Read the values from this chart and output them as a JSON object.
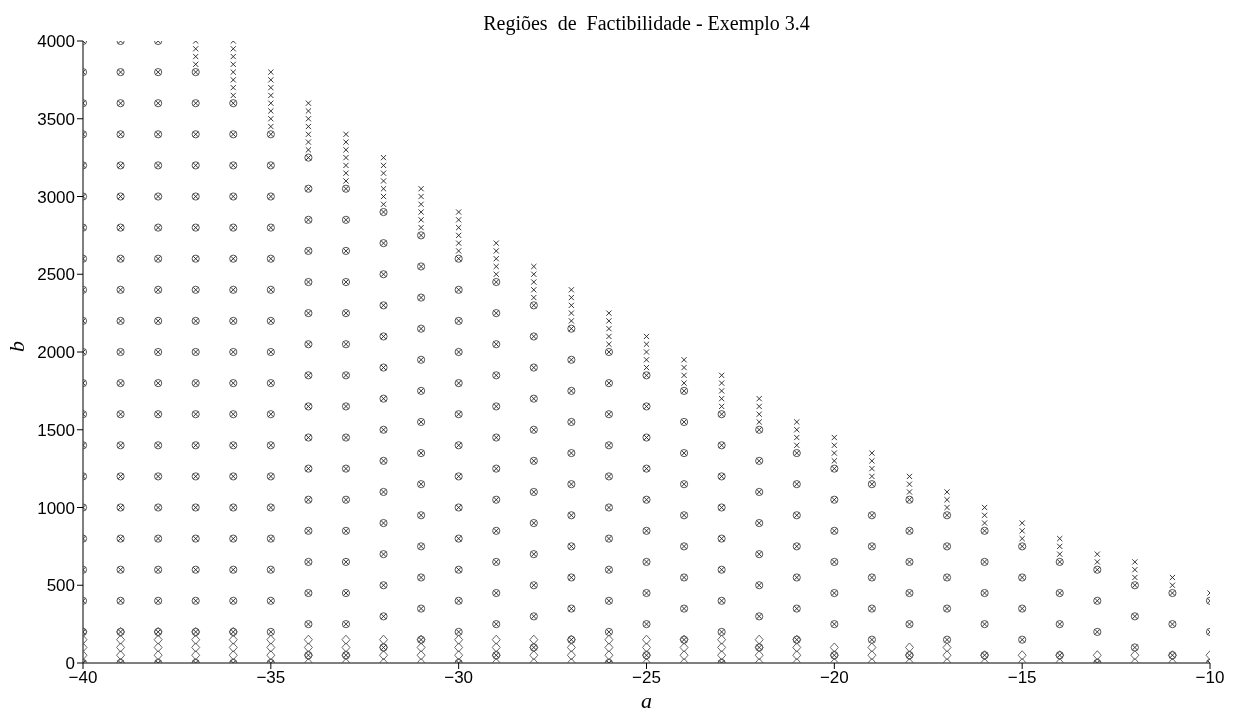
{
  "chart_data": {
    "type": "scatter",
    "title": "Regiões  de  Factibilidade - Exemplo 3.4",
    "xlabel": "a",
    "ylabel": "b",
    "xlim": [
      -40,
      -10
    ],
    "xticks": [
      -40,
      -35,
      -30,
      -25,
      -20,
      -15,
      -10
    ],
    "ylim": [
      0,
      4000
    ],
    "yticks": [
      0,
      500,
      1000,
      1500,
      2000,
      2500,
      3000,
      3500,
      4000
    ],
    "grid": false,
    "legend": false,
    "series": [
      {
        "type": "scatter",
        "marker": "cross",
        "color": "#222222",
        "x": [
          -40,
          -40,
          -40,
          -40,
          -40,
          -40,
          -40,
          -40,
          -40,
          -40,
          -40,
          -40,
          -40,
          -40,
          -40,
          -40,
          -40,
          -40,
          -40,
          -40,
          -40,
          -39,
          -39,
          -39,
          -39,
          -39,
          -39,
          -39,
          -39,
          -39,
          -39,
          -39,
          -39,
          -39,
          -39,
          -39,
          -39,
          -39,
          -39,
          -39,
          -39,
          -39,
          -38,
          -38,
          -38,
          -38,
          -38,
          -38,
          -38,
          -38,
          -38,
          -38,
          -38,
          -38,
          -38,
          -38,
          -38,
          -38,
          -38,
          -38,
          -38,
          -38,
          -38,
          -37,
          -37,
          -37,
          -37,
          -37,
          -37,
          -37,
          -37,
          -37,
          -37,
          -37,
          -37,
          -37,
          -37,
          -37,
          -37,
          -37,
          -37,
          -37,
          -37,
          -37,
          -37,
          -37,
          -37,
          -36,
          -36,
          -36,
          -36,
          -36,
          -36,
          -36,
          -36,
          -36,
          -36,
          -36,
          -36,
          -36,
          -36,
          -36,
          -36,
          -36,
          -36,
          -36,
          -36,
          -36,
          -36,
          -36,
          -36,
          -36,
          -36,
          -36,
          -35,
          -35,
          -35,
          -35,
          -35,
          -35,
          -35,
          -35,
          -35,
          -35,
          -35,
          -35,
          -35,
          -35,
          -35,
          -35,
          -35,
          -35,
          -35,
          -35,
          -35,
          -35,
          -35,
          -35,
          -35,
          -35,
          -34,
          -34,
          -34,
          -34,
          -34,
          -34,
          -34,
          -34,
          -34,
          -34,
          -34,
          -34,
          -34,
          -34,
          -34,
          -34,
          -34,
          -34,
          -34,
          -34,
          -34,
          -34,
          -34,
          -34,
          -33,
          -33,
          -33,
          -33,
          -33,
          -33,
          -33,
          -33,
          -33,
          -33,
          -33,
          -33,
          -33,
          -33,
          -33,
          -33,
          -33,
          -33,
          -33,
          -33,
          -33,
          -33,
          -33,
          -32,
          -32,
          -32,
          -32,
          -32,
          -32,
          -32,
          -32,
          -32,
          -32,
          -32,
          -32,
          -32,
          -32,
          -32,
          -32,
          -32,
          -32,
          -32,
          -32,
          -32,
          -32,
          -31,
          -31,
          -31,
          -31,
          -31,
          -31,
          -31,
          -31,
          -31,
          -31,
          -31,
          -31,
          -31,
          -31,
          -31,
          -31,
          -31,
          -31,
          -31,
          -31,
          -30,
          -30,
          -30,
          -30,
          -30,
          -30,
          -30,
          -30,
          -30,
          -30,
          -30,
          -30,
          -30,
          -30,
          -30,
          -30,
          -30,
          -30,
          -30,
          -30,
          -29,
          -29,
          -29,
          -29,
          -29,
          -29,
          -29,
          -29,
          -29,
          -29,
          -29,
          -29,
          -29,
          -29,
          -29,
          -29,
          -29,
          -29,
          -28,
          -28,
          -28,
          -28,
          -28,
          -28,
          -28,
          -28,
          -28,
          -28,
          -28,
          -28,
          -28,
          -28,
          -28,
          -28,
          -28,
          -27,
          -27,
          -27,
          -27,
          -27,
          -27,
          -27,
          -27,
          -27,
          -27,
          -27,
          -27,
          -27,
          -27,
          -27,
          -27,
          -26,
          -26,
          -26,
          -26,
          -26,
          -26,
          -26,
          -26,
          -26,
          -26,
          -26,
          -26,
          -26,
          -26,
          -26,
          -26,
          -25,
          -25,
          -25,
          -25,
          -25,
          -25,
          -25,
          -25,
          -25,
          -25,
          -25,
          -25,
          -25,
          -25,
          -25,
          -24,
          -24,
          -24,
          -24,
          -24,
          -24,
          -24,
          -24,
          -24,
          -24,
          -24,
          -24,
          -24,
          -23,
          -23,
          -23,
          -23,
          -23,
          -23,
          -23,
          -23,
          -23,
          -23,
          -23,
          -23,
          -23,
          -23,
          -22,
          -22,
          -22,
          -22,
          -22,
          -22,
          -22,
          -22,
          -22,
          -22,
          -22,
          -22,
          -21,
          -21,
          -21,
          -21,
          -21,
          -21,
          -21,
          -21,
          -21,
          -21,
          -21,
          -20,
          -20,
          -20,
          -20,
          -20,
          -20,
          -20,
          -20,
          -20,
          -20,
          -20,
          -19,
          -19,
          -19,
          -19,
          -19,
          -19,
          -19,
          -19,
          -19,
          -19,
          -18,
          -18,
          -18,
          -18,
          -18,
          -18,
          -18,
          -18,
          -18,
          -17,
          -17,
          -17,
          -17,
          -17,
          -17,
          -17,
          -17,
          -16,
          -16,
          -16,
          -16,
          -16,
          -16,
          -16,
          -16,
          -15,
          -15,
          -15,
          -15,
          -15,
          -15,
          -15,
          -14,
          -14,
          -14,
          -14,
          -14,
          -14,
          -14,
          -13,
          -13,
          -13,
          -13,
          -13,
          -13,
          -12,
          -12,
          -12,
          -12,
          -12,
          -12,
          -11,
          -11,
          -11,
          -11,
          -11,
          -10,
          -10,
          -10,
          -10
        ],
        "values": [
          4000,
          3800,
          3600,
          3400,
          3200,
          3000,
          2800,
          2600,
          2400,
          2200,
          2000,
          1800,
          1600,
          1400,
          1200,
          1000,
          800,
          600,
          400,
          200,
          0,
          4000,
          3800,
          3600,
          3400,
          3200,
          3000,
          2800,
          2600,
          2400,
          2200,
          2000,
          1800,
          1600,
          1400,
          1200,
          1000,
          800,
          600,
          400,
          200,
          0,
          4000,
          3800,
          3600,
          3400,
          3200,
          3000,
          2800,
          2600,
          2400,
          2200,
          2000,
          1800,
          1600,
          1400,
          1200,
          1000,
          800,
          600,
          400,
          200,
          0,
          4000,
          3950,
          3900,
          3850,
          3800,
          3600,
          3400,
          3200,
          3000,
          2800,
          2600,
          2400,
          2200,
          2000,
          1800,
          1600,
          1400,
          1200,
          1000,
          800,
          600,
          400,
          200,
          0,
          4000,
          3950,
          3900,
          3850,
          3800,
          3750,
          3700,
          3650,
          3600,
          3400,
          3200,
          3000,
          2800,
          2600,
          2400,
          2200,
          2000,
          1800,
          1600,
          1400,
          1200,
          1000,
          800,
          600,
          400,
          200,
          0,
          3800,
          3750,
          3700,
          3650,
          3600,
          3550,
          3500,
          3450,
          3400,
          3200,
          3000,
          2800,
          2600,
          2400,
          2200,
          2000,
          1800,
          1600,
          1400,
          1200,
          1000,
          800,
          600,
          400,
          200,
          0,
          3600,
          3550,
          3500,
          3450,
          3400,
          3350,
          3300,
          3250,
          3050,
          2850,
          2650,
          2450,
          2250,
          2050,
          1850,
          1650,
          1450,
          1250,
          1050,
          850,
          650,
          450,
          250,
          50,
          3400,
          3350,
          3300,
          3250,
          3200,
          3150,
          3100,
          3050,
          2850,
          2650,
          2450,
          2250,
          2050,
          1850,
          1650,
          1450,
          1250,
          1050,
          850,
          650,
          450,
          250,
          50,
          3250,
          3200,
          3150,
          3100,
          3050,
          3000,
          2950,
          2900,
          2700,
          2500,
          2300,
          2100,
          1900,
          1700,
          1500,
          1300,
          1100,
          900,
          700,
          500,
          300,
          100,
          3050,
          3000,
          2950,
          2900,
          2850,
          2800,
          2750,
          2550,
          2350,
          2150,
          1950,
          1750,
          1550,
          1350,
          1150,
          950,
          750,
          550,
          350,
          150,
          2900,
          2850,
          2800,
          2750,
          2700,
          2650,
          2600,
          2400,
          2200,
          2000,
          1800,
          1600,
          1400,
          1200,
          1000,
          800,
          600,
          400,
          200,
          0,
          2700,
          2650,
          2600,
          2550,
          2500,
          2450,
          2250,
          2050,
          1850,
          1650,
          1450,
          1250,
          1050,
          850,
          650,
          450,
          250,
          50,
          2550,
          2500,
          2450,
          2400,
          2350,
          2300,
          2100,
          1900,
          1700,
          1500,
          1300,
          1100,
          900,
          700,
          500,
          300,
          100,
          2400,
          2350,
          2300,
          2250,
          2200,
          2150,
          1950,
          1750,
          1550,
          1350,
          1150,
          950,
          750,
          550,
          350,
          150,
          2250,
          2200,
          2150,
          2100,
          2050,
          2000,
          1800,
          1600,
          1400,
          1200,
          1000,
          800,
          600,
          400,
          200,
          0,
          2100,
          2050,
          2000,
          1950,
          1900,
          1850,
          1650,
          1450,
          1250,
          1050,
          850,
          650,
          450,
          250,
          50,
          1950,
          1900,
          1850,
          1800,
          1750,
          1550,
          1350,
          1150,
          950,
          750,
          550,
          350,
          150,
          1850,
          1800,
          1750,
          1700,
          1650,
          1600,
          1400,
          1200,
          1000,
          800,
          600,
          400,
          200,
          0,
          1700,
          1650,
          1600,
          1550,
          1500,
          1300,
          1100,
          900,
          700,
          500,
          300,
          100,
          1550,
          1500,
          1450,
          1400,
          1350,
          1150,
          950,
          750,
          550,
          350,
          150,
          1450,
          1400,
          1350,
          1300,
          1250,
          1050,
          850,
          650,
          450,
          250,
          50,
          1350,
          1300,
          1250,
          1200,
          1150,
          950,
          750,
          550,
          350,
          150,
          1200,
          1150,
          1100,
          1050,
          850,
          650,
          450,
          250,
          50,
          1100,
          1050,
          1000,
          950,
          750,
          550,
          350,
          150,
          1000,
          950,
          900,
          850,
          650,
          450,
          250,
          50,
          900,
          850,
          800,
          750,
          550,
          350,
          150,
          800,
          750,
          700,
          650,
          450,
          250,
          50,
          700,
          650,
          600,
          400,
          200,
          0,
          650,
          600,
          550,
          500,
          300,
          100,
          550,
          500,
          450,
          250,
          50,
          450,
          400,
          200,
          0
        ]
      },
      {
        "type": "scatter",
        "marker": "circle",
        "color": "#444444",
        "x": [
          -40,
          -40,
          -40,
          -40,
          -40,
          -40,
          -40,
          -40,
          -40,
          -40,
          -40,
          -40,
          -40,
          -40,
          -40,
          -40,
          -40,
          -40,
          -40,
          -40,
          -40,
          -39,
          -39,
          -39,
          -39,
          -39,
          -39,
          -39,
          -39,
          -39,
          -39,
          -39,
          -39,
          -39,
          -39,
          -39,
          -39,
          -39,
          -39,
          -39,
          -39,
          -39,
          -38,
          -38,
          -38,
          -38,
          -38,
          -38,
          -38,
          -38,
          -38,
          -38,
          -38,
          -38,
          -38,
          -38,
          -38,
          -38,
          -38,
          -38,
          -38,
          -38,
          -38,
          -37,
          -37,
          -37,
          -37,
          -37,
          -37,
          -37,
          -37,
          -37,
          -37,
          -37,
          -37,
          -37,
          -37,
          -37,
          -37,
          -37,
          -37,
          -37,
          -37,
          -36,
          -36,
          -36,
          -36,
          -36,
          -36,
          -36,
          -36,
          -36,
          -36,
          -36,
          -36,
          -36,
          -36,
          -36,
          -36,
          -36,
          -36,
          -36,
          -35,
          -35,
          -35,
          -35,
          -35,
          -35,
          -35,
          -35,
          -35,
          -35,
          -35,
          -35,
          -35,
          -35,
          -35,
          -35,
          -35,
          -35,
          -34,
          -34,
          -34,
          -34,
          -34,
          -34,
          -34,
          -34,
          -34,
          -34,
          -34,
          -34,
          -34,
          -34,
          -34,
          -34,
          -34,
          -33,
          -33,
          -33,
          -33,
          -33,
          -33,
          -33,
          -33,
          -33,
          -33,
          -33,
          -33,
          -33,
          -33,
          -33,
          -33,
          -32,
          -32,
          -32,
          -32,
          -32,
          -32,
          -32,
          -32,
          -32,
          -32,
          -32,
          -32,
          -32,
          -32,
          -32,
          -31,
          -31,
          -31,
          -31,
          -31,
          -31,
          -31,
          -31,
          -31,
          -31,
          -31,
          -31,
          -31,
          -31,
          -30,
          -30,
          -30,
          -30,
          -30,
          -30,
          -30,
          -30,
          -30,
          -30,
          -30,
          -30,
          -30,
          -30,
          -29,
          -29,
          -29,
          -29,
          -29,
          -29,
          -29,
          -29,
          -29,
          -29,
          -29,
          -29,
          -29,
          -28,
          -28,
          -28,
          -28,
          -28,
          -28,
          -28,
          -28,
          -28,
          -28,
          -28,
          -28,
          -27,
          -27,
          -27,
          -27,
          -27,
          -27,
          -27,
          -27,
          -27,
          -27,
          -27,
          -26,
          -26,
          -26,
          -26,
          -26,
          -26,
          -26,
          -26,
          -26,
          -26,
          -26,
          -25,
          -25,
          -25,
          -25,
          -25,
          -25,
          -25,
          -25,
          -25,
          -25,
          -24,
          -24,
          -24,
          -24,
          -24,
          -24,
          -24,
          -24,
          -24,
          -23,
          -23,
          -23,
          -23,
          -23,
          -23,
          -23,
          -23,
          -23,
          -22,
          -22,
          -22,
          -22,
          -22,
          -22,
          -22,
          -22,
          -21,
          -21,
          -21,
          -21,
          -21,
          -21,
          -21,
          -20,
          -20,
          -20,
          -20,
          -20,
          -20,
          -20,
          -19,
          -19,
          -19,
          -19,
          -19,
          -19,
          -18,
          -18,
          -18,
          -18,
          -18,
          -18,
          -17,
          -17,
          -17,
          -17,
          -17,
          -16,
          -16,
          -16,
          -16,
          -16,
          -15,
          -15,
          -15,
          -15,
          -14,
          -14,
          -14,
          -14,
          -13,
          -13,
          -13,
          -13,
          -12,
          -12,
          -12,
          -11,
          -11,
          -11,
          -10,
          -10,
          -10
        ],
        "values": [
          4000,
          3800,
          3600,
          3400,
          3200,
          3000,
          2800,
          2600,
          2400,
          2200,
          2000,
          1800,
          1600,
          1400,
          1200,
          1000,
          800,
          600,
          400,
          200,
          0,
          4000,
          3800,
          3600,
          3400,
          3200,
          3000,
          2800,
          2600,
          2400,
          2200,
          2000,
          1800,
          1600,
          1400,
          1200,
          1000,
          800,
          600,
          400,
          200,
          0,
          4000,
          3800,
          3600,
          3400,
          3200,
          3000,
          2800,
          2600,
          2400,
          2200,
          2000,
          1800,
          1600,
          1400,
          1200,
          1000,
          800,
          600,
          400,
          200,
          0,
          3800,
          3600,
          3400,
          3200,
          3000,
          2800,
          2600,
          2400,
          2200,
          2000,
          1800,
          1600,
          1400,
          1200,
          1000,
          800,
          600,
          400,
          200,
          0,
          3600,
          3400,
          3200,
          3000,
          2800,
          2600,
          2400,
          2200,
          2000,
          1800,
          1600,
          1400,
          1200,
          1000,
          800,
          600,
          400,
          200,
          0,
          3400,
          3200,
          3000,
          2800,
          2600,
          2400,
          2200,
          2000,
          1800,
          1600,
          1400,
          1200,
          1000,
          800,
          600,
          400,
          200,
          0,
          3250,
          3050,
          2850,
          2650,
          2450,
          2250,
          2050,
          1850,
          1650,
          1450,
          1250,
          1050,
          850,
          650,
          450,
          250,
          50,
          3050,
          2850,
          2650,
          2450,
          2250,
          2050,
          1850,
          1650,
          1450,
          1250,
          1050,
          850,
          650,
          450,
          250,
          50,
          2900,
          2700,
          2500,
          2300,
          2100,
          1900,
          1700,
          1500,
          1300,
          1100,
          900,
          700,
          500,
          300,
          100,
          2750,
          2550,
          2350,
          2150,
          1950,
          1750,
          1550,
          1350,
          1150,
          950,
          750,
          550,
          350,
          150,
          2600,
          2400,
          2200,
          2000,
          1800,
          1600,
          1400,
          1200,
          1000,
          800,
          600,
          400,
          200,
          0,
          2450,
          2250,
          2050,
          1850,
          1650,
          1450,
          1250,
          1050,
          850,
          650,
          450,
          250,
          50,
          2300,
          2100,
          1900,
          1700,
          1500,
          1300,
          1100,
          900,
          700,
          500,
          300,
          100,
          2150,
          1950,
          1750,
          1550,
          1350,
          1150,
          950,
          750,
          550,
          350,
          150,
          2000,
          1800,
          1600,
          1400,
          1200,
          1000,
          800,
          600,
          400,
          200,
          0,
          1850,
          1650,
          1450,
          1250,
          1050,
          850,
          650,
          450,
          250,
          50,
          1750,
          1550,
          1350,
          1150,
          950,
          750,
          550,
          350,
          150,
          1600,
          1400,
          1200,
          1000,
          800,
          600,
          400,
          200,
          0,
          1500,
          1300,
          1100,
          900,
          700,
          500,
          300,
          100,
          1350,
          1150,
          950,
          750,
          550,
          350,
          150,
          1250,
          1050,
          850,
          650,
          450,
          250,
          50,
          1150,
          950,
          750,
          550,
          350,
          150,
          1050,
          850,
          650,
          450,
          250,
          50,
          950,
          750,
          550,
          350,
          150,
          850,
          650,
          450,
          250,
          50,
          750,
          550,
          350,
          150,
          650,
          450,
          250,
          50,
          600,
          400,
          200,
          0,
          500,
          300,
          100,
          450,
          250,
          50,
          400,
          200,
          0
        ]
      },
      {
        "type": "scatter",
        "marker": "diamond",
        "color": "#555555",
        "x": [
          -40,
          -40,
          -40,
          -40,
          -40,
          -39,
          -39,
          -39,
          -39,
          -39,
          -38,
          -38,
          -38,
          -38,
          -38,
          -37,
          -37,
          -37,
          -37,
          -37,
          -36,
          -36,
          -36,
          -36,
          -36,
          -35,
          -35,
          -35,
          -35,
          -34,
          -34,
          -34,
          -34,
          -33,
          -33,
          -33,
          -33,
          -32,
          -32,
          -32,
          -32,
          -31,
          -31,
          -31,
          -31,
          -30,
          -30,
          -30,
          -30,
          -29,
          -29,
          -29,
          -29,
          -28,
          -28,
          -28,
          -28,
          -27,
          -27,
          -27,
          -27,
          -26,
          -26,
          -26,
          -26,
          -25,
          -25,
          -25,
          -25,
          -24,
          -24,
          -24,
          -24,
          -23,
          -23,
          -23,
          -23,
          -22,
          -22,
          -22,
          -22,
          -21,
          -21,
          -21,
          -21,
          -20,
          -20,
          -20,
          -19,
          -19,
          -19,
          -18,
          -18,
          -18,
          -17,
          -17,
          -17,
          -16,
          -16,
          -15,
          -15,
          -14,
          -14,
          -13,
          -13,
          -12,
          -12,
          -11,
          -11,
          -10,
          -10
        ],
        "values": [
          200,
          150,
          100,
          50,
          0,
          200,
          150,
          100,
          50,
          0,
          200,
          150,
          100,
          50,
          0,
          200,
          150,
          100,
          50,
          0,
          200,
          150,
          100,
          50,
          0,
          150,
          100,
          50,
          0,
          150,
          100,
          50,
          0,
          150,
          100,
          50,
          0,
          150,
          100,
          50,
          0,
          150,
          100,
          50,
          0,
          150,
          100,
          50,
          0,
          150,
          100,
          50,
          0,
          150,
          100,
          50,
          0,
          150,
          100,
          50,
          0,
          150,
          100,
          50,
          0,
          150,
          100,
          50,
          0,
          150,
          100,
          50,
          0,
          150,
          100,
          50,
          0,
          150,
          100,
          50,
          0,
          150,
          100,
          50,
          0,
          100,
          50,
          0,
          100,
          50,
          0,
          100,
          50,
          0,
          100,
          50,
          0,
          50,
          0,
          50,
          0,
          50,
          0,
          50,
          0,
          50,
          0,
          50,
          0,
          50,
          0
        ]
      }
    ]
  }
}
